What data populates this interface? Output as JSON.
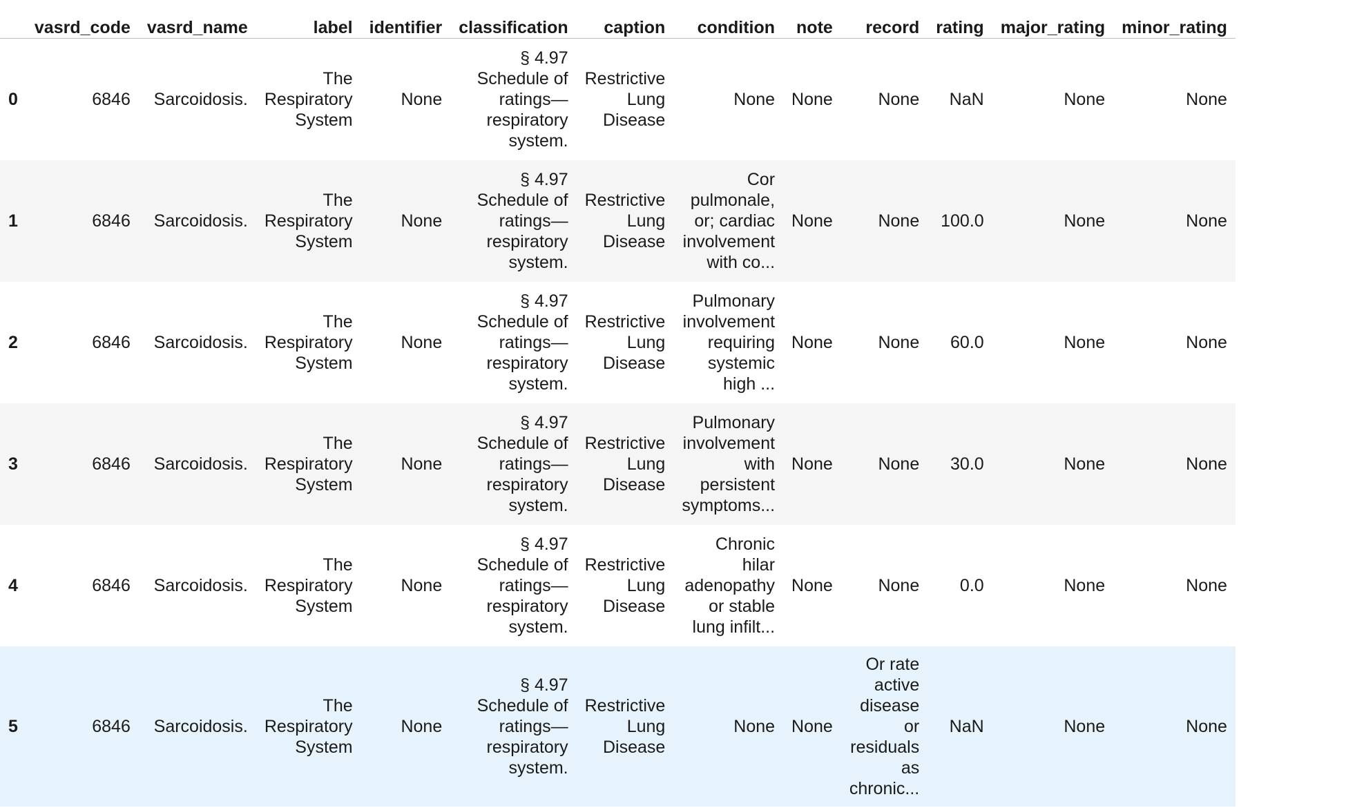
{
  "columns": [
    "",
    "vasrd_code",
    "vasrd_name",
    "label",
    "identifier",
    "classification",
    "caption",
    "condition",
    "note",
    "record",
    "rating",
    "major_rating",
    "minor_rating"
  ],
  "rows": [
    {
      "index": "0",
      "vasrd_code": "6846",
      "vasrd_name": "Sarcoidosis.",
      "label": "The Respiratory System",
      "identifier": "None",
      "classification": "§ 4.97 Schedule of ratings—respiratory system.",
      "caption": "Restrictive Lung Disease",
      "condition": "None",
      "note": "None",
      "record": "None",
      "rating": "NaN",
      "major_rating": "None",
      "minor_rating": "None"
    },
    {
      "index": "1",
      "vasrd_code": "6846",
      "vasrd_name": "Sarcoidosis.",
      "label": "The Respiratory System",
      "identifier": "None",
      "classification": "§ 4.97 Schedule of ratings—respiratory system.",
      "caption": "Restrictive Lung Disease",
      "condition": "Cor pulmonale, or; cardiac involvement with co...",
      "note": "None",
      "record": "None",
      "rating": "100.0",
      "major_rating": "None",
      "minor_rating": "None"
    },
    {
      "index": "2",
      "vasrd_code": "6846",
      "vasrd_name": "Sarcoidosis.",
      "label": "The Respiratory System",
      "identifier": "None",
      "classification": "§ 4.97 Schedule of ratings—respiratory system.",
      "caption": "Restrictive Lung Disease",
      "condition": "Pulmonary involvement requiring systemic high ...",
      "note": "None",
      "record": "None",
      "rating": "60.0",
      "major_rating": "None",
      "minor_rating": "None"
    },
    {
      "index": "3",
      "vasrd_code": "6846",
      "vasrd_name": "Sarcoidosis.",
      "label": "The Respiratory System",
      "identifier": "None",
      "classification": "§ 4.97 Schedule of ratings—respiratory system.",
      "caption": "Restrictive Lung Disease",
      "condition": "Pulmonary involvement with persistent symptoms...",
      "note": "None",
      "record": "None",
      "rating": "30.0",
      "major_rating": "None",
      "minor_rating": "None"
    },
    {
      "index": "4",
      "vasrd_code": "6846",
      "vasrd_name": "Sarcoidosis.",
      "label": "The Respiratory System",
      "identifier": "None",
      "classification": "§ 4.97 Schedule of ratings—respiratory system.",
      "caption": "Restrictive Lung Disease",
      "condition": "Chronic hilar adenopathy or stable lung infilt...",
      "note": "None",
      "record": "None",
      "rating": "0.0",
      "major_rating": "None",
      "minor_rating": "None"
    },
    {
      "index": "5",
      "vasrd_code": "6846",
      "vasrd_name": "Sarcoidosis.",
      "label": "The Respiratory System",
      "identifier": "None",
      "classification": "§ 4.97 Schedule of ratings—respiratory system.",
      "caption": "Restrictive Lung Disease",
      "condition": "None",
      "note": "None",
      "record": "Or rate active disease or residuals as chronic...",
      "rating": "NaN",
      "major_rating": "None",
      "minor_rating": "None"
    }
  ],
  "colors": {
    "row_stripe": "#f5f5f5",
    "row_hover": "#e6f3fc",
    "header_border": "#bdbdbd"
  }
}
